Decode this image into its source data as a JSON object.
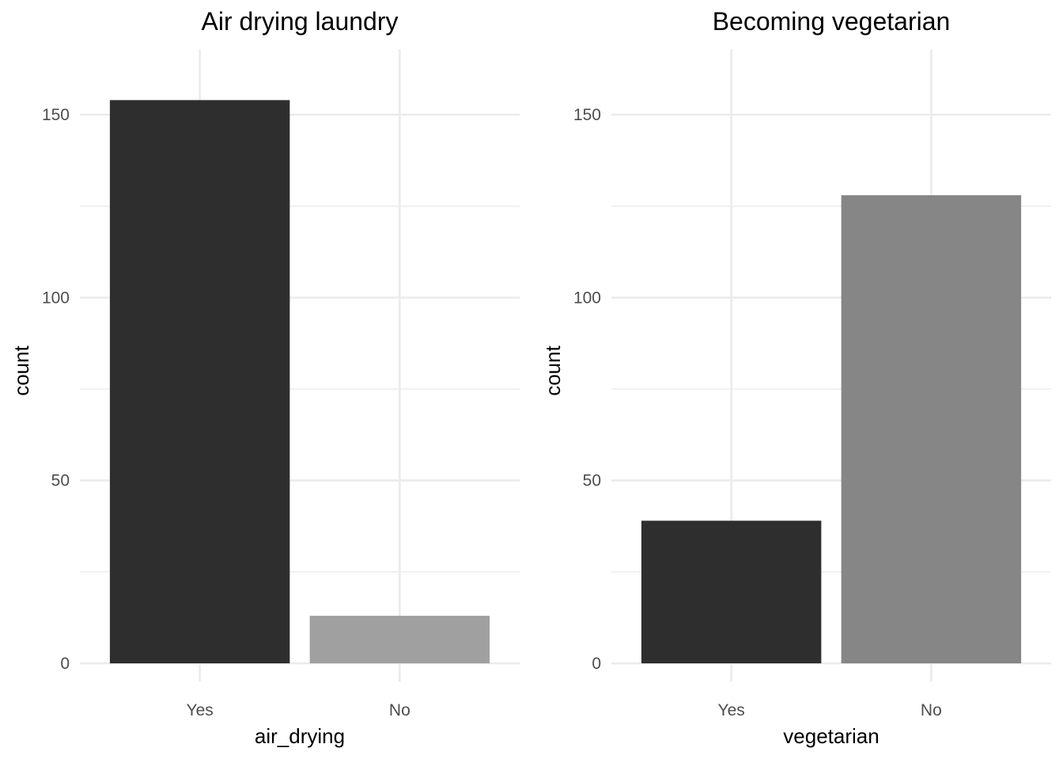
{
  "chart_data": [
    {
      "type": "bar",
      "title": "Air drying laundry",
      "xlabel": "air_drying",
      "ylabel": "count",
      "categories": [
        "Yes",
        "No"
      ],
      "values": [
        154,
        13
      ],
      "colors": [
        "#2e2e2e",
        "#a0a0a0"
      ],
      "ylim": [
        0,
        167
      ],
      "yticks": [
        0,
        50,
        100,
        150
      ],
      "grid": true,
      "legend": "none"
    },
    {
      "type": "bar",
      "title": "Becoming vegetarian",
      "xlabel": "vegetarian",
      "ylabel": "count",
      "categories": [
        "Yes",
        "No"
      ],
      "values": [
        39,
        128
      ],
      "colors": [
        "#2e2e2e",
        "#868686"
      ],
      "ylim": [
        0,
        167
      ],
      "yticks": [
        0,
        50,
        100,
        150
      ],
      "grid": true,
      "legend": "none"
    }
  ]
}
